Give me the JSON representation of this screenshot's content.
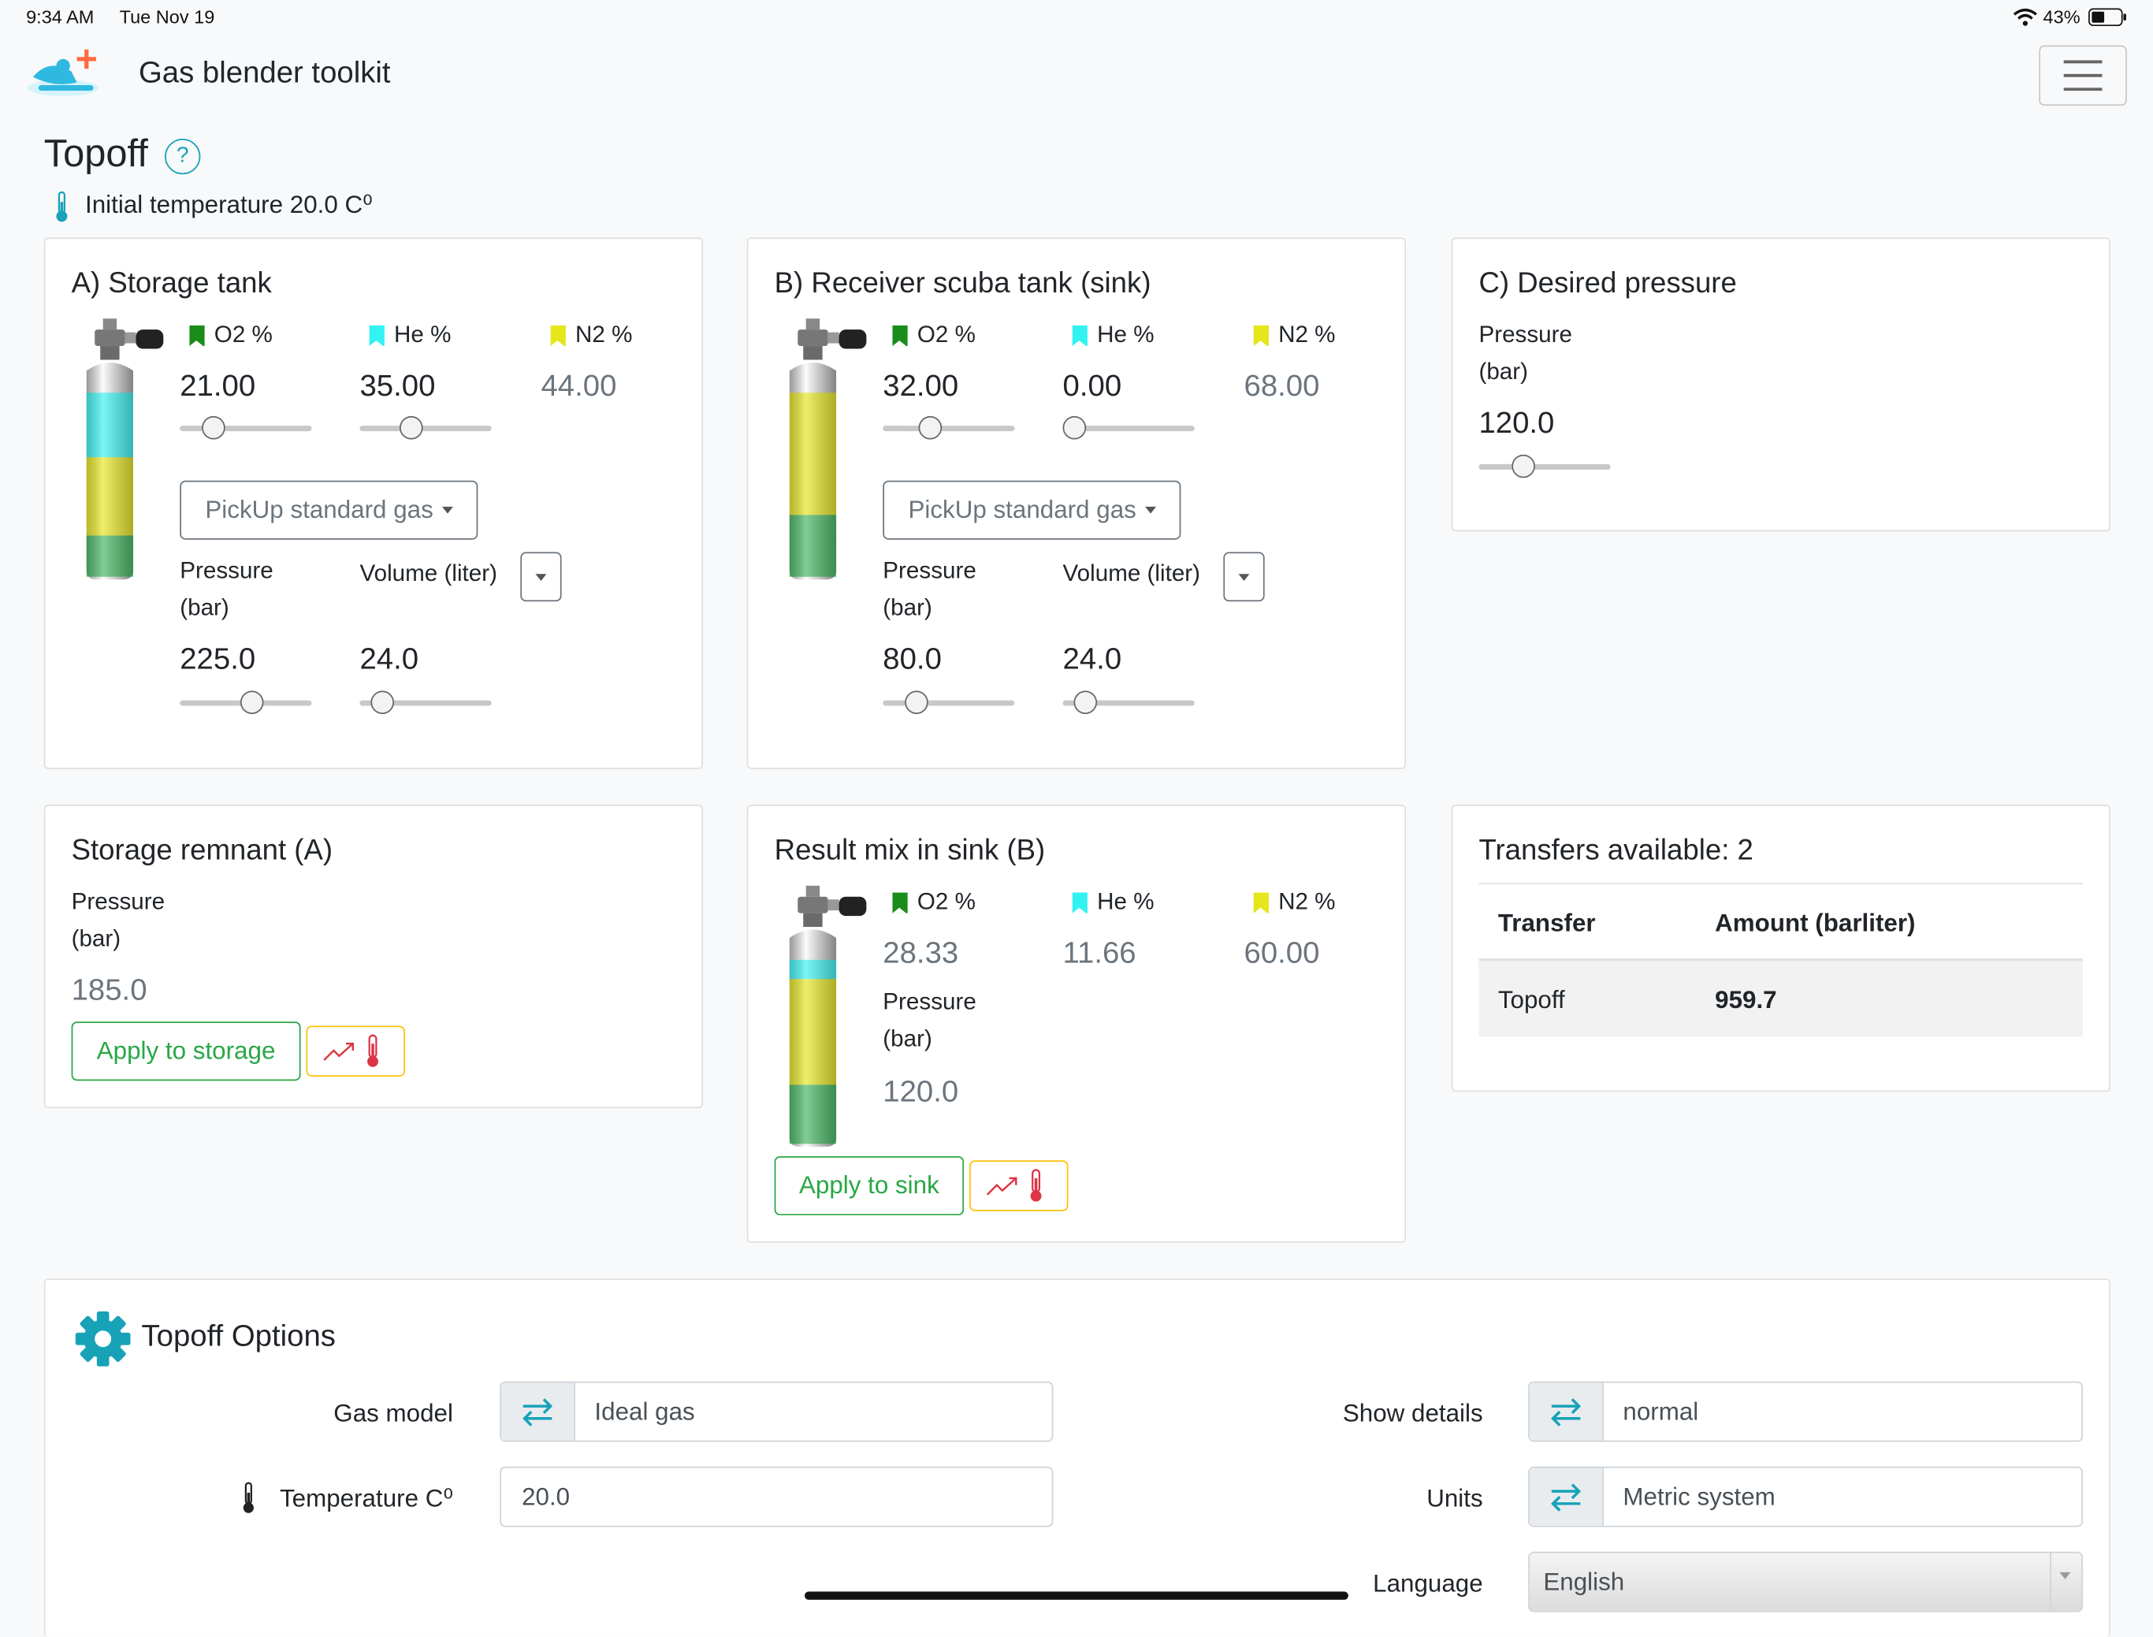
{
  "status_bar": {
    "time": "9:34 AM",
    "date": "Tue Nov 19",
    "battery": "43%"
  },
  "app": {
    "title": "Gas blender toolkit"
  },
  "page": {
    "title": "Topoff",
    "help": "?",
    "initial_temperature": "Initial temperature 20.0 C⁰"
  },
  "storage_tank": {
    "title": "A) Storage tank",
    "o2_label": "O2 %",
    "he_label": "He %",
    "n2_label": "N2 %",
    "o2": "21.00",
    "he": "35.00",
    "n2": "44.00",
    "o2_level": 0.26,
    "he_level": 0.39,
    "pick_label": "PickUp standard gas",
    "pressure_label_1": "Pressure",
    "pressure_label_2": "(bar)",
    "volume_label": "Volume (liter)",
    "pressure": "225.0",
    "volume": "24.0",
    "pressure_level": 0.55,
    "volume_level": 0.17
  },
  "receiver_tank": {
    "title": "B) Receiver scuba tank (sink)",
    "o2_label": "O2 %",
    "he_label": "He %",
    "n2_label": "N2 %",
    "o2": "32.00",
    "he": "0.00",
    "n2": "68.00",
    "o2_level": 0.36,
    "he_level": 0.09,
    "pick_label": "PickUp standard gas",
    "pressure_label_1": "Pressure",
    "pressure_label_2": "(bar)",
    "volume_label": "Volume (liter)",
    "pressure": "80.0",
    "volume": "24.0",
    "pressure_level": 0.26,
    "volume_level": 0.17
  },
  "desired": {
    "title": "C) Desired pressure",
    "pressure_label_1": "Pressure",
    "pressure_label_2": "(bar)",
    "pressure": "120.0",
    "pressure_level": 0.34
  },
  "remnant": {
    "title": "Storage remnant (A)",
    "pressure_label_1": "Pressure",
    "pressure_label_2": "(bar)",
    "pressure": "185.0",
    "apply_label": "Apply to storage"
  },
  "result": {
    "title": "Result mix in sink (B)",
    "o2_label": "O2 %",
    "he_label": "He %",
    "n2_label": "N2 %",
    "o2": "28.33",
    "he": "11.66",
    "n2": "60.00",
    "pressure_label_1": "Pressure",
    "pressure_label_2": "(bar)",
    "pressure": "120.0",
    "apply_label": "Apply to sink"
  },
  "transfers": {
    "title": "Transfers available: 2",
    "col_transfer": "Transfer",
    "col_amount": "Amount (barliter)",
    "rows": [
      {
        "transfer": "Topoff",
        "amount": "959.7"
      }
    ]
  },
  "options": {
    "title": "Topoff Options",
    "gas_model_label": "Gas model",
    "gas_model": "Ideal gas",
    "temperature_label": "Temperature C⁰",
    "temperature": "20.0",
    "show_details_label": "Show details",
    "show_details": "normal",
    "units_label": "Units",
    "units": "Metric system",
    "language_label": "Language",
    "language": "English"
  },
  "colors": {
    "o2": "#1a8c1a",
    "he": "#33f2f2",
    "n2": "#e6e61a",
    "accent": "#17a2b8",
    "success": "#28a745",
    "warning": "#ffc107",
    "danger": "#dc3545"
  }
}
